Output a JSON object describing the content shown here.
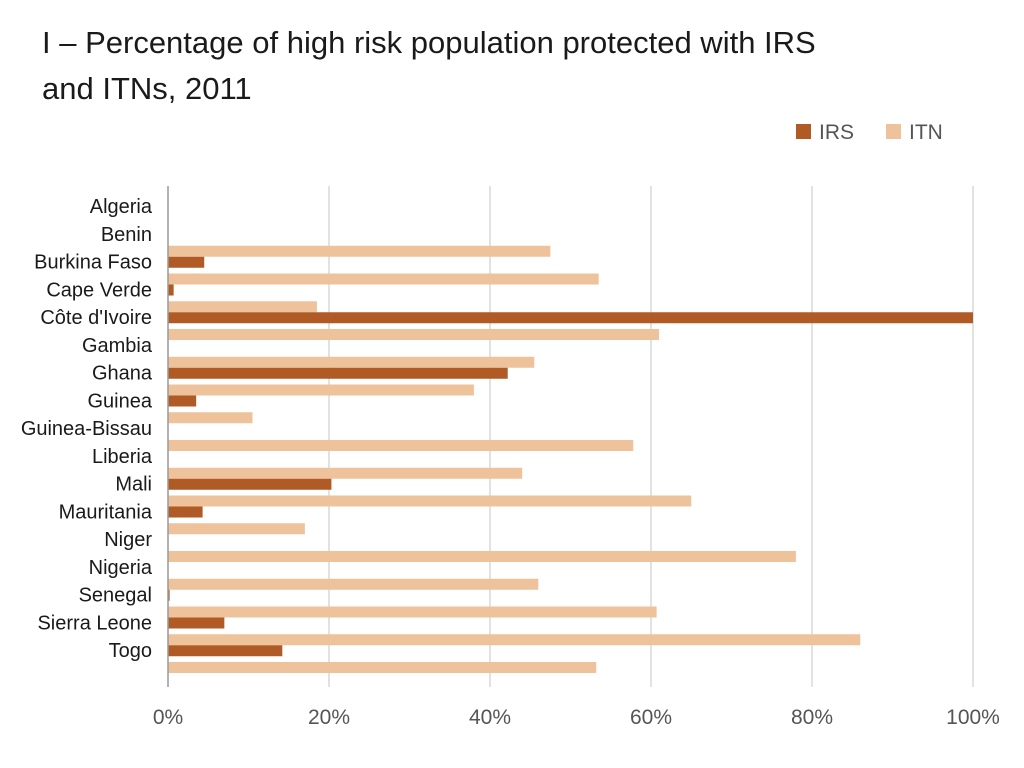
{
  "title_line1": "I – Percentage of high risk population protected with IRS",
  "title_line2": "and ITNs,   2011",
  "colors": {
    "IRS": "#b05a25",
    "ITN": "#eec39b",
    "grid": "#d9d9d9",
    "axis": "#999999"
  },
  "chart_data": {
    "type": "bar",
    "orientation": "horizontal",
    "title": "I – Percentage of high risk population protected with IRS and ITNs,   2011",
    "categories": [
      "Algeria",
      "Benin",
      "Burkina Faso",
      "Cape Verde",
      "Côte d'Ivoire",
      "Gambia",
      "Ghana",
      "Guinea",
      "Guinea-Bissau",
      "Liberia",
      "Mali",
      "Mauritania",
      "Niger",
      "Nigeria",
      "Senegal",
      "Sierra Leone",
      "Togo"
    ],
    "series": [
      {
        "name": "ITN",
        "values": [
          0,
          47.5,
          53.5,
          18.5,
          61,
          45.5,
          38,
          10.5,
          57.8,
          44,
          65,
          17,
          78,
          46,
          60.7,
          86,
          53.2
        ]
      },
      {
        "name": "IRS",
        "values": [
          0,
          4.5,
          0.7,
          100,
          0,
          42.2,
          3.5,
          0,
          0,
          20.3,
          4.3,
          0,
          0,
          0.2,
          7,
          14.2,
          0
        ]
      }
    ],
    "xlim": [
      0,
      100
    ],
    "xticks": [
      "0%",
      "20%",
      "40%",
      "60%",
      "80%",
      "100%"
    ],
    "xtick_values": [
      0,
      20,
      40,
      60,
      80,
      100
    ],
    "grid": true,
    "legend_position": "top-right",
    "legend": [
      "IRS",
      "ITN"
    ]
  }
}
